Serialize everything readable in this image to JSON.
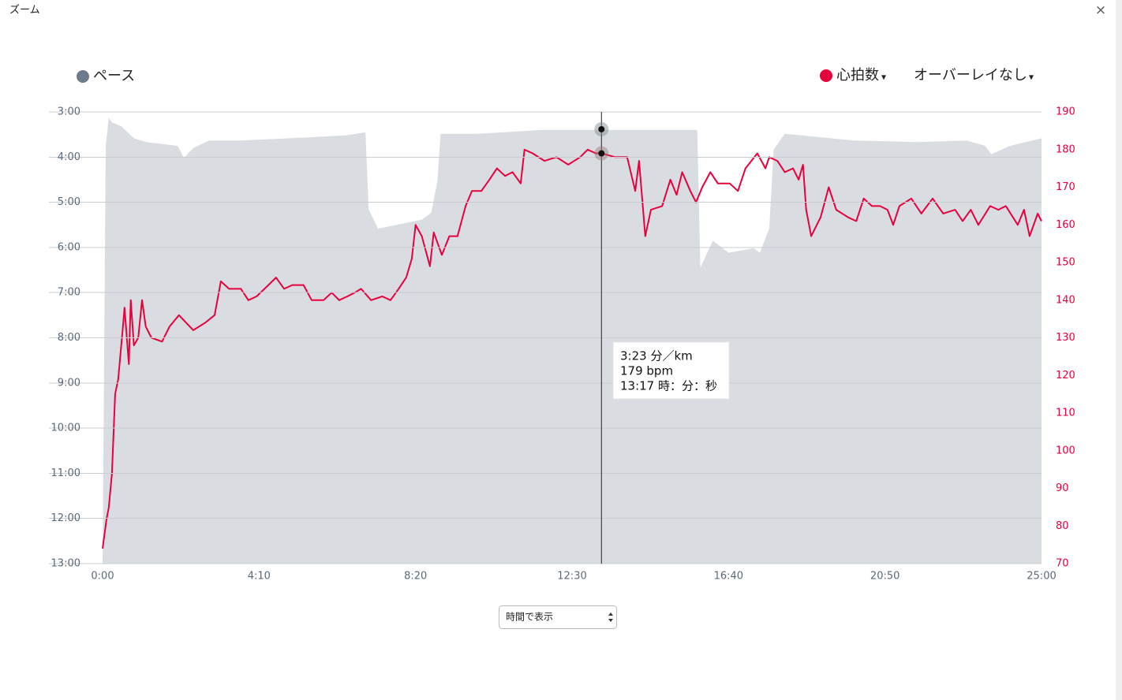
{
  "header": {
    "title": "ズーム",
    "close": "×"
  },
  "chart_data": {
    "type": "line",
    "legend": {
      "overlay": "オーバーレイなし",
      "dropdown_mark": "▾"
    },
    "xlim": [
      0,
      1500
    ],
    "xticks": [
      {
        "value": 0,
        "label": "0:00"
      },
      {
        "value": 250,
        "label": "4:10"
      },
      {
        "value": 500,
        "label": "8:20"
      },
      {
        "value": 750,
        "label": "12:30"
      },
      {
        "value": 1000,
        "label": "16:40"
      },
      {
        "value": 1250,
        "label": "20:50"
      },
      {
        "value": 1500,
        "label": "25:00"
      }
    ],
    "ylim": [
      780,
      180
    ],
    "yticks": [
      {
        "value": 180,
        "label": "3:00"
      },
      {
        "value": 240,
        "label": "4:00"
      },
      {
        "value": 300,
        "label": "5:00"
      },
      {
        "value": 360,
        "label": "6:00"
      },
      {
        "value": 420,
        "label": "7:00"
      },
      {
        "value": 480,
        "label": "8:00"
      },
      {
        "value": 540,
        "label": "9:00"
      },
      {
        "value": 600,
        "label": "10:00"
      },
      {
        "value": 660,
        "label": "11:00"
      },
      {
        "value": 720,
        "label": "12:00"
      },
      {
        "value": 780,
        "label": "13:00"
      }
    ],
    "y2lim": [
      70,
      190
    ],
    "y2ticks": [
      70,
      80,
      90,
      100,
      110,
      120,
      130,
      140,
      150,
      160,
      170,
      180,
      190
    ],
    "grid": true,
    "series": [
      {
        "name": "ペース",
        "type": "area",
        "color": "#d9dde1",
        "marker_color": "#6b7b8c",
        "x": [
          0,
          5,
          10,
          15,
          30,
          50,
          70,
          100,
          120,
          130,
          145,
          170,
          220,
          300,
          390,
          420,
          425,
          440,
          470,
          510,
          525,
          535,
          540,
          600,
          700,
          800,
          950,
          955,
          975,
          1000,
          1040,
          1050,
          1065,
          1072,
          1090,
          1200,
          1300,
          1380,
          1410,
          1420,
          1450,
          1500
        ],
        "values": [
          780,
          225,
          188,
          194,
          199,
          215,
          220,
          223,
          225,
          241,
          228,
          218,
          218,
          215,
          211,
          207,
          309,
          335,
          330,
          323,
          314,
          272,
          209,
          209,
          204,
          204,
          204,
          387,
          351,
          367,
          361,
          367,
          335,
          230,
          209,
          218,
          220,
          218,
          225,
          236,
          225,
          215
        ]
      },
      {
        "name": "心拍数",
        "type": "line",
        "axis": "y2",
        "color": "#e8003d",
        "marker_color": "#e8003d",
        "x": [
          0,
          6,
          10,
          15,
          20,
          25,
          32,
          35,
          42,
          45,
          50,
          57,
          63,
          69,
          78,
          95,
          107,
          122,
          145,
          164,
          179,
          189,
          202,
          221,
          233,
          246,
          265,
          277,
          290,
          303,
          321,
          334,
          353,
          366,
          378,
          391,
          403,
          413,
          429,
          447,
          460,
          473,
          485,
          494,
          500,
          510,
          523,
          529,
          542,
          554,
          567,
          580,
          590,
          605,
          618,
          630,
          643,
          655,
          668,
          674,
          687,
          706,
          725,
          744,
          763,
          775,
          788,
          797,
          819,
          838,
          851,
          857,
          867,
          876,
          894,
          907,
          917,
          926,
          939,
          948,
          958,
          971,
          983,
          1002,
          1015,
          1027,
          1046,
          1059,
          1065,
          1078,
          1090,
          1103,
          1112,
          1119,
          1124,
          1132,
          1147,
          1160,
          1172,
          1191,
          1204,
          1216,
          1229,
          1242,
          1254,
          1263,
          1273,
          1292,
          1308,
          1326,
          1343,
          1362,
          1374,
          1387,
          1399,
          1418,
          1431,
          1443,
          1462,
          1472,
          1481,
          1494,
          1500
        ],
        "values": [
          74,
          81.5,
          85,
          94,
          115,
          119,
          132,
          138,
          123,
          140,
          128,
          130,
          140,
          133,
          130,
          129,
          133,
          136,
          132,
          134,
          136,
          145,
          143,
          143,
          140,
          141,
          144,
          146,
          143,
          144,
          144,
          140,
          140,
          142,
          140,
          141,
          142,
          143,
          140,
          141,
          140,
          143,
          146,
          151,
          160,
          157,
          149,
          158,
          152,
          157,
          157,
          165,
          169,
          169,
          172,
          175,
          173,
          174,
          171,
          180,
          179,
          177,
          178,
          176,
          178,
          180,
          179,
          179,
          178,
          178,
          169,
          177,
          157,
          164,
          165,
          172,
          168,
          174,
          169,
          166,
          170,
          174,
          171,
          171,
          169,
          175,
          179,
          175,
          178,
          177,
          174,
          175,
          172,
          176,
          164,
          157,
          162,
          170,
          164,
          162,
          161,
          167,
          165,
          165,
          164,
          160,
          165,
          167,
          163,
          167,
          163,
          164,
          161,
          164,
          160,
          165,
          164,
          165,
          160,
          164,
          157,
          163,
          161
        ]
      }
    ],
    "cursor": {
      "x": 797,
      "pace": 203,
      "heart_rate": 179,
      "lines": [
        "3:23 分／km",
        "179 bpm",
        "13:17 時：分：秒"
      ]
    }
  },
  "footer": {
    "select": "時間で表示"
  }
}
